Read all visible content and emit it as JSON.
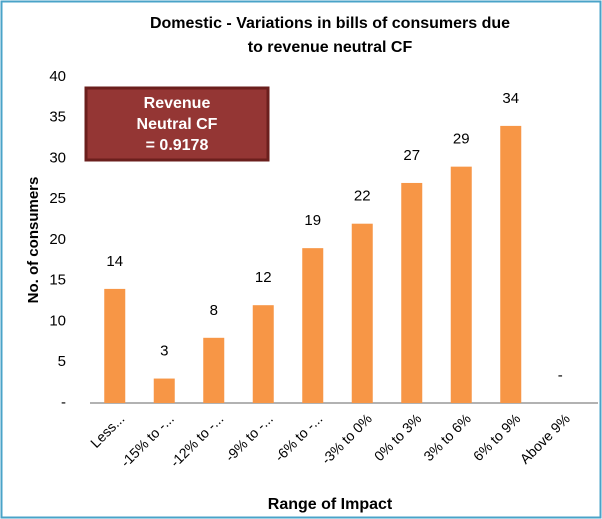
{
  "chart_data": {
    "type": "bar",
    "title_lines": [
      "Domestic - Variations in bills of consumers due",
      "to revenue neutral CF"
    ],
    "xlabel": "Range of Impact",
    "ylabel": "No. of consumers",
    "annotation_lines": [
      "Revenue",
      "Neutral CF",
      "= 0.9178"
    ],
    "categories": [
      "Less...",
      "-15% to -...",
      "-12% to -...",
      "-9% to -...",
      "-6% to -...",
      "-3% to 0%",
      "0% to 3%",
      "3% to 6%",
      "6% to 9%",
      "Above 9%"
    ],
    "values": [
      14,
      3,
      8,
      12,
      19,
      22,
      27,
      29,
      34,
      0
    ],
    "value_labels": [
      "14",
      "3",
      "8",
      "12",
      "19",
      "22",
      "27",
      "29",
      "34",
      "-"
    ],
    "color": "#f79646",
    "ylim": [
      0,
      40
    ],
    "yticks": [
      {
        "value": 0,
        "label": "-"
      },
      5,
      10,
      15,
      20,
      25,
      30,
      35,
      40
    ],
    "grid": false
  }
}
